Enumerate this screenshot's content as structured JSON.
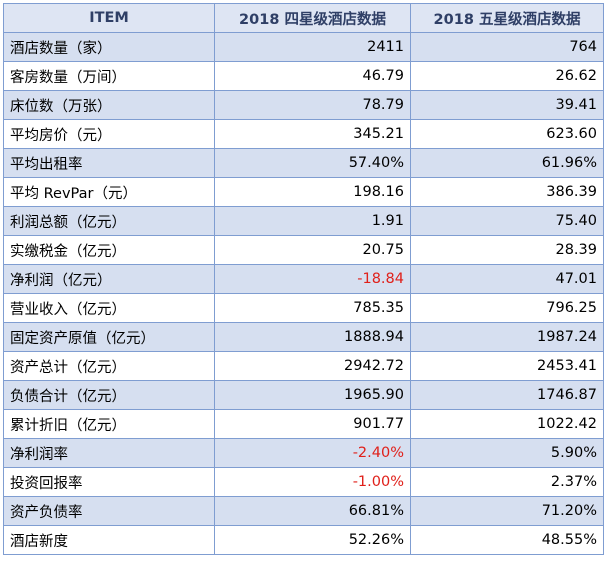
{
  "table": {
    "headers": [
      "ITEM",
      "2018 四星级酒店数据",
      "2018 五星级酒店数据"
    ],
    "rows": [
      {
        "item": "酒店数量（家）",
        "four_star": "2411",
        "five_star": "764"
      },
      {
        "item": "客房数量（万间）",
        "four_star": "46.79",
        "five_star": "26.62"
      },
      {
        "item": "床位数（万张）",
        "four_star": "78.79",
        "five_star": "39.41"
      },
      {
        "item": "平均房价（元）",
        "four_star": "345.21",
        "five_star": "623.60"
      },
      {
        "item": "平均出租率",
        "four_star": "57.40%",
        "five_star": "61.96%"
      },
      {
        "item": "平均 RevPar（元）",
        "four_star": "198.16",
        "five_star": "386.39"
      },
      {
        "item": "利润总额（亿元）",
        "four_star": "1.91",
        "five_star": "75.40"
      },
      {
        "item": "实缴税金（亿元）",
        "four_star": "20.75",
        "five_star": "28.39"
      },
      {
        "item": "净利润（亿元）",
        "four_star": "-18.84",
        "five_star": "47.01"
      },
      {
        "item": "营业收入（亿元）",
        "four_star": "785.35",
        "five_star": "796.25"
      },
      {
        "item": "固定资产原值（亿元）",
        "four_star": "1888.94",
        "five_star": "1987.24"
      },
      {
        "item": "资产总计（亿元）",
        "four_star": "2942.72",
        "five_star": "2453.41"
      },
      {
        "item": "负债合计（亿元）",
        "four_star": "1965.90",
        "five_star": "1746.87"
      },
      {
        "item": "累计折旧（亿元）",
        "four_star": "901.77",
        "five_star": "1022.42"
      },
      {
        "item": "净利润率",
        "four_star": "-2.40%",
        "five_star": "5.90%"
      },
      {
        "item": "投资回报率",
        "four_star": "-1.00%",
        "five_star": "2.37%"
      },
      {
        "item": "资产负债率",
        "four_star": "66.81%",
        "five_star": "71.20%"
      },
      {
        "item": "酒店新度",
        "four_star": "52.26%",
        "five_star": "48.55%"
      }
    ]
  },
  "colors": {
    "header_bg": "#dee5f3",
    "header_text": "#2f3f66",
    "band_row_bg": "#d6dff0",
    "border": "#7f9dd1",
    "negative_text": "#e0201a"
  }
}
